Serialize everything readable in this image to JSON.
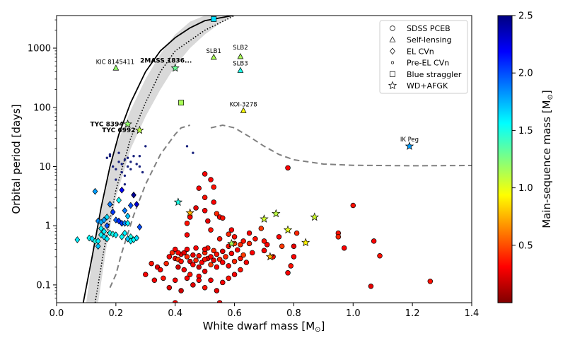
{
  "chart_data": {
    "type": "scatter",
    "xlabel": "White dwarf mass [M",
    "ylabel": "Orbital period [days]",
    "colorbar_label": "Main-sequence mass [M",
    "msun_symbol": "⊙",
    "xlim": [
      0.0,
      1.4
    ],
    "ylim_log10": [
      -1.3,
      3.55
    ],
    "x_ticks": [
      "0.0",
      "0.2",
      "0.4",
      "0.6",
      "0.8",
      "1.0",
      "1.2",
      "1.4"
    ],
    "y_ticks": [
      "0.1",
      "1",
      "10",
      "100",
      "1000"
    ],
    "colorbar_range": [
      0.0,
      2.5
    ],
    "colorbar_ticks": [
      "0.5",
      "1.0",
      "1.5",
      "2.0",
      "2.5"
    ],
    "colormap": [
      "#800000",
      "#ff0000",
      "#ff8000",
      "#ffff00",
      "#80ff80",
      "#00ffff",
      "#0080ff",
      "#0000ff",
      "#000080"
    ],
    "legend": [
      {
        "marker": "circle",
        "label": "SDSS PCEB"
      },
      {
        "marker": "triangle",
        "label": "Self-lensing"
      },
      {
        "marker": "diamond",
        "label": "EL CVn"
      },
      {
        "marker": "dot",
        "label": "Pre-EL CVn"
      },
      {
        "marker": "square",
        "label": "Blue straggler"
      },
      {
        "marker": "star",
        "label": "WD+AFGK"
      }
    ],
    "annotations": [
      {
        "text": "KIC 8145411",
        "bold": false
      },
      {
        "text": "2MASS 1836...",
        "bold": true
      },
      {
        "text": "SLB1",
        "bold": false
      },
      {
        "text": "SLB2",
        "bold": false
      },
      {
        "text": "SLB3",
        "bold": false
      },
      {
        "text": "KOI-3278",
        "bold": false
      },
      {
        "text": "TYC 8394",
        "bold": true
      },
      {
        "text": "TYC 6992",
        "bold": true
      },
      {
        "text": "IK Peg",
        "bold": false
      }
    ],
    "relation_curve": [
      [
        0.09,
        0.05
      ],
      [
        0.12,
        0.3
      ],
      [
        0.15,
        2.0
      ],
      [
        0.18,
        10
      ],
      [
        0.21,
        35
      ],
      [
        0.25,
        120
      ],
      [
        0.3,
        400
      ],
      [
        0.35,
        900
      ],
      [
        0.4,
        1500
      ],
      [
        0.45,
        2200
      ],
      [
        0.5,
        2900
      ],
      [
        0.6,
        3600
      ]
    ],
    "band_upper": [
      [
        0.1,
        0.05
      ],
      [
        0.13,
        0.6
      ],
      [
        0.17,
        5.0
      ],
      [
        0.2,
        22
      ],
      [
        0.25,
        90
      ],
      [
        0.3,
        300
      ],
      [
        0.35,
        800
      ],
      [
        0.4,
        1700
      ],
      [
        0.45,
        2800
      ],
      [
        0.5,
        3550
      ]
    ],
    "band_lower": [
      [
        0.14,
        0.05
      ],
      [
        0.17,
        0.5
      ],
      [
        0.2,
        3.0
      ],
      [
        0.25,
        20
      ],
      [
        0.3,
        70
      ],
      [
        0.35,
        200
      ],
      [
        0.4,
        500
      ],
      [
        0.45,
        1000
      ],
      [
        0.5,
        1700
      ],
      [
        0.55,
        2600
      ],
      [
        0.6,
        3550
      ]
    ],
    "dotted_curve": [
      [
        0.13,
        0.05
      ],
      [
        0.16,
        0.4
      ],
      [
        0.2,
        4.0
      ],
      [
        0.25,
        30
      ],
      [
        0.3,
        120
      ],
      [
        0.35,
        400
      ],
      [
        0.4,
        900
      ],
      [
        0.5,
        2000
      ],
      [
        0.6,
        3550
      ]
    ],
    "dashed_boundary": [
      [
        0.18,
        0.09
      ],
      [
        0.2,
        0.15
      ],
      [
        0.22,
        0.35
      ],
      [
        0.26,
        1.5
      ],
      [
        0.3,
        5.0
      ],
      [
        0.35,
        16
      ],
      [
        0.4,
        35
      ],
      [
        0.42,
        45
      ],
      [
        0.45,
        50
      ],
      null,
      [
        0.52,
        45
      ],
      [
        0.56,
        50
      ],
      [
        0.6,
        45
      ],
      [
        0.65,
        32
      ],
      [
        0.7,
        22
      ],
      [
        0.75,
        16
      ],
      [
        0.8,
        13
      ],
      [
        0.9,
        11
      ],
      [
        1.0,
        10.5
      ],
      [
        1.2,
        10.3
      ],
      [
        1.4,
        10.4
      ]
    ],
    "sdss_pceb": [
      [
        0.37,
        0.23,
        0.4
      ],
      [
        0.38,
        0.3,
        0.3
      ],
      [
        0.39,
        0.35,
        0.4
      ],
      [
        0.4,
        0.4,
        0.3
      ],
      [
        0.4,
        0.28,
        0.25
      ],
      [
        0.41,
        0.27,
        0.45
      ],
      [
        0.41,
        0.2,
        0.2
      ],
      [
        0.42,
        0.25,
        0.35
      ],
      [
        0.42,
        0.33,
        0.3
      ],
      [
        0.43,
        0.35,
        0.25
      ],
      [
        0.43,
        0.18,
        0.3
      ],
      [
        0.44,
        0.3,
        0.4
      ],
      [
        0.44,
        0.4,
        0.3
      ],
      [
        0.45,
        0.25,
        0.2
      ],
      [
        0.45,
        0.15,
        0.35
      ],
      [
        0.46,
        0.22,
        0.3
      ],
      [
        0.46,
        0.32,
        0.25
      ],
      [
        0.47,
        0.26,
        0.4
      ],
      [
        0.47,
        0.42,
        0.3
      ],
      [
        0.48,
        0.2,
        0.2
      ],
      [
        0.48,
        0.31,
        0.35
      ],
      [
        0.49,
        0.24,
        0.3
      ],
      [
        0.5,
        0.35,
        0.4
      ],
      [
        0.5,
        0.17,
        0.25
      ],
      [
        0.51,
        0.28,
        0.3
      ],
      [
        0.51,
        0.42,
        0.35
      ],
      [
        0.52,
        0.22,
        0.45
      ],
      [
        0.52,
        0.3,
        0.3
      ],
      [
        0.53,
        0.26,
        0.25
      ],
      [
        0.53,
        0.38,
        0.4
      ],
      [
        0.54,
        0.2,
        0.3
      ],
      [
        0.54,
        0.33,
        0.35
      ],
      [
        0.55,
        0.27,
        0.4
      ],
      [
        0.56,
        0.24,
        0.3
      ],
      [
        0.56,
        0.37,
        0.25
      ],
      [
        0.57,
        0.3,
        0.4
      ],
      [
        0.58,
        0.21,
        0.3
      ],
      [
        0.58,
        0.45,
        0.35
      ],
      [
        0.59,
        0.34,
        0.3
      ],
      [
        0.6,
        0.25,
        0.4
      ],
      [
        0.6,
        0.5,
        0.5
      ],
      [
        0.61,
        0.39,
        0.3
      ],
      [
        0.62,
        0.28,
        0.35
      ],
      [
        0.63,
        0.32,
        0.45
      ],
      [
        0.64,
        0.24,
        0.3
      ],
      [
        0.65,
        0.5,
        0.4
      ],
      [
        0.66,
        0.35,
        0.3
      ],
      [
        0.67,
        0.6,
        0.35
      ],
      [
        0.7,
        0.38,
        0.4
      ],
      [
        0.71,
        0.48,
        0.3
      ],
      [
        0.73,
        0.3,
        0.35
      ],
      [
        0.75,
        0.65,
        0.3
      ],
      [
        0.76,
        0.45,
        0.45
      ],
      [
        0.78,
        0.16,
        0.3
      ],
      [
        0.79,
        0.21,
        0.35
      ],
      [
        0.8,
        0.3,
        0.3
      ],
      [
        0.81,
        0.75,
        0.4
      ],
      [
        0.8,
        0.45,
        0.25
      ],
      [
        0.3,
        0.15,
        0.3
      ],
      [
        0.32,
        0.23,
        0.35
      ],
      [
        0.33,
        0.12,
        0.3
      ],
      [
        0.34,
        0.2,
        0.25
      ],
      [
        0.35,
        0.18,
        0.3
      ],
      [
        0.36,
        0.13,
        0.35
      ],
      [
        0.38,
        0.09,
        0.25
      ],
      [
        0.4,
        0.12,
        0.3
      ],
      [
        0.42,
        0.08,
        0.2
      ],
      [
        0.44,
        0.13,
        0.3
      ],
      [
        0.46,
        0.1,
        0.25
      ],
      [
        0.48,
        0.14,
        0.3
      ],
      [
        0.5,
        0.09,
        0.35
      ],
      [
        0.52,
        0.12,
        0.3
      ],
      [
        0.54,
        0.08,
        0.25
      ],
      [
        0.56,
        0.11,
        0.3
      ],
      [
        0.58,
        0.13,
        0.35
      ],
      [
        0.6,
        0.15,
        0.3
      ],
      [
        0.62,
        0.18,
        0.35
      ],
      [
        0.4,
        0.05,
        0.3
      ],
      [
        0.55,
        0.05,
        0.3
      ],
      [
        0.44,
        1.1,
        0.35
      ],
      [
        0.45,
        1.4,
        0.3
      ],
      [
        0.47,
        2.0,
        0.25
      ],
      [
        0.48,
        4.3,
        0.3
      ],
      [
        0.5,
        3.0,
        0.35
      ],
      [
        0.5,
        1.8,
        0.3
      ],
      [
        0.51,
        1.2,
        0.25
      ],
      [
        0.52,
        0.85,
        0.35
      ],
      [
        0.53,
        2.5,
        0.3
      ],
      [
        0.54,
        1.6,
        0.4
      ],
      [
        0.55,
        1.4,
        0.3
      ],
      [
        0.56,
        1.35,
        0.35
      ],
      [
        0.58,
        0.72,
        0.4
      ],
      [
        0.6,
        0.65,
        0.35
      ],
      [
        0.62,
        0.48,
        0.4
      ],
      [
        0.65,
        0.75,
        0.3
      ],
      [
        0.52,
        6.0,
        0.3
      ],
      [
        0.53,
        4.5,
        0.35
      ],
      [
        0.59,
        0.85,
        0.3
      ],
      [
        0.7,
        0.55,
        0.35
      ],
      [
        0.7,
        0.38,
        0.3
      ],
      [
        0.69,
        0.9,
        0.45
      ],
      [
        0.5,
        7.5,
        0.3
      ],
      [
        0.44,
        0.7,
        0.3
      ],
      [
        0.5,
        0.4,
        0.3
      ],
      [
        0.78,
        9.5,
        0.3
      ],
      [
        0.95,
        0.75,
        0.35
      ],
      [
        0.95,
        0.65,
        0.4
      ],
      [
        0.97,
        0.42,
        0.3
      ],
      [
        1.0,
        2.2,
        0.35
      ],
      [
        1.07,
        0.55,
        0.3
      ],
      [
        1.09,
        0.31,
        0.35
      ],
      [
        1.06,
        0.095,
        0.25
      ],
      [
        1.26,
        0.115,
        0.35
      ],
      [
        0.63,
        0.55,
        0.35
      ],
      [
        0.55,
        0.6,
        0.35
      ],
      [
        0.41,
        0.35,
        0.3
      ],
      [
        0.48,
        0.12,
        0.3
      ],
      [
        0.5,
        0.27,
        0.35
      ]
    ],
    "self_lensing": [
      {
        "label": "KIC 8145411",
        "x": 0.2,
        "y": 460,
        "c": 1.2
      },
      {
        "label": "SLB1",
        "x": 0.53,
        "y": 700,
        "c": 1.15
      },
      {
        "label": "SLB2",
        "x": 0.62,
        "y": 720,
        "c": 1.15
      },
      {
        "label": "SLB3",
        "x": 0.62,
        "y": 420,
        "c": 1.5
      },
      {
        "label": "KOI-3278",
        "x": 0.63,
        "y": 88,
        "c": 0.95
      }
    ],
    "el_cvn": [
      [
        0.07,
        0.58,
        1.6
      ],
      [
        0.11,
        0.62,
        1.55
      ],
      [
        0.12,
        0.6,
        1.65
      ],
      [
        0.13,
        0.55,
        1.5
      ],
      [
        0.14,
        0.55,
        1.6
      ],
      [
        0.14,
        0.45,
        1.7
      ],
      [
        0.15,
        0.9,
        1.6
      ],
      [
        0.15,
        0.7,
        1.55
      ],
      [
        0.16,
        0.65,
        1.65
      ],
      [
        0.17,
        0.6,
        1.6
      ],
      [
        0.18,
        0.75,
        1.55
      ],
      [
        0.19,
        0.72,
        1.5
      ],
      [
        0.2,
        0.7,
        1.6
      ],
      [
        0.22,
        0.65,
        1.55
      ],
      [
        0.23,
        0.75,
        1.6
      ],
      [
        0.24,
        0.6,
        1.7
      ],
      [
        0.25,
        0.65,
        1.5
      ],
      [
        0.25,
        0.55,
        1.6
      ],
      [
        0.26,
        0.58,
        1.55
      ],
      [
        0.27,
        0.62,
        1.65
      ],
      [
        0.14,
        1.2,
        1.85
      ],
      [
        0.15,
        1.15,
        1.75
      ],
      [
        0.16,
        1.25,
        1.8
      ],
      [
        0.17,
        1.0,
        2.0
      ],
      [
        0.18,
        2.3,
        1.9
      ],
      [
        0.19,
        1.7,
        2.05
      ],
      [
        0.2,
        1.25,
        1.95
      ],
      [
        0.21,
        1.2,
        2.1
      ],
      [
        0.22,
        1.1,
        2.05
      ],
      [
        0.23,
        1.1,
        1.85
      ],
      [
        0.24,
        1.45,
        1.7
      ],
      [
        0.25,
        2.2,
        2.0
      ],
      [
        0.26,
        3.3,
        2.45
      ],
      [
        0.27,
        2.3,
        2.3
      ],
      [
        0.22,
        4.0,
        2.2
      ],
      [
        0.13,
        3.8,
        1.8
      ],
      [
        0.21,
        2.7,
        1.55
      ],
      [
        0.28,
        0.95,
        2.0
      ],
      [
        0.23,
        1.8,
        1.9
      ],
      [
        0.17,
        1.4,
        1.65
      ],
      [
        0.16,
        0.8,
        1.6
      ],
      [
        0.24,
        1.1,
        1.6
      ]
    ],
    "pre_el_cvn": [
      [
        0.17,
        14
      ],
      [
        0.18,
        15
      ],
      [
        0.18,
        16
      ],
      [
        0.19,
        10
      ],
      [
        0.2,
        9
      ],
      [
        0.21,
        12
      ],
      [
        0.21,
        17
      ],
      [
        0.22,
        8
      ],
      [
        0.22,
        11
      ],
      [
        0.23,
        13
      ],
      [
        0.23,
        7
      ],
      [
        0.24,
        10
      ],
      [
        0.24,
        14
      ],
      [
        0.25,
        12
      ],
      [
        0.25,
        9
      ],
      [
        0.26,
        15
      ],
      [
        0.27,
        11
      ],
      [
        0.28,
        15
      ],
      [
        0.28,
        10
      ],
      [
        0.3,
        22
      ],
      [
        0.44,
        22
      ],
      [
        0.46,
        17
      ],
      [
        0.29,
        8
      ],
      [
        0.2,
        6
      ],
      [
        0.23,
        5
      ]
    ],
    "blue_straggler": [
      {
        "x": 0.53,
        "y": 3100,
        "c": 1.65
      },
      {
        "x": 0.42,
        "y": 120,
        "c": 1.15
      }
    ],
    "wd_afgk": [
      {
        "label": "2MASS 1836...",
        "x": 0.4,
        "y": 460,
        "c": 1.3
      },
      {
        "label": "TYC 8394",
        "x": 0.24,
        "y": 52,
        "c": 1.2
      },
      {
        "label": "TYC 6992",
        "x": 0.28,
        "y": 41,
        "c": 1.1
      },
      {
        "label": "IK Peg",
        "x": 1.19,
        "y": 22,
        "c": 1.8
      },
      {
        "x": 0.41,
        "y": 2.5,
        "c": 1.5
      },
      {
        "x": 0.45,
        "y": 1.65,
        "c": 0.75
      },
      {
        "x": 0.59,
        "y": 0.5,
        "c": 1.15
      },
      {
        "x": 0.7,
        "y": 1.3,
        "c": 1.05
      },
      {
        "x": 0.74,
        "y": 1.6,
        "c": 1.1
      },
      {
        "x": 0.78,
        "y": 0.85,
        "c": 1.0
      },
      {
        "x": 0.84,
        "y": 0.52,
        "c": 0.9
      },
      {
        "x": 0.87,
        "y": 1.4,
        "c": 1.05
      },
      {
        "x": 0.72,
        "y": 0.3,
        "c": 0.75
      }
    ]
  }
}
